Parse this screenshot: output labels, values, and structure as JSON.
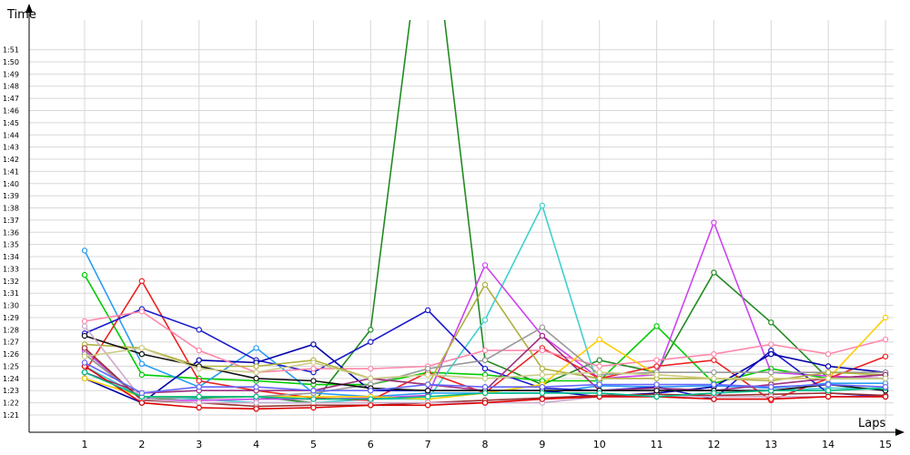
{
  "chart_data": {
    "type": "line",
    "xlabel": "Laps",
    "ylabel": "Time",
    "x": [
      1,
      2,
      3,
      4,
      5,
      6,
      7,
      8,
      9,
      10,
      11,
      12,
      13,
      14,
      15
    ],
    "y_ticks": [
      "1:21",
      "1:22",
      "1:23",
      "1:24",
      "1:25",
      "1:26",
      "1:27",
      "1:28",
      "1:29",
      "1:30",
      "1:31",
      "1:32",
      "1:33",
      "1:34",
      "1:35",
      "1:36",
      "1:37",
      "1:38",
      "1:39",
      "1:40",
      "1:41",
      "1:42",
      "1:43",
      "1:44",
      "1:45",
      "1:46",
      "1:47",
      "1:48",
      "1:49",
      "1:50",
      "1:51"
    ],
    "ylim_seconds": [
      80.3,
      113
    ],
    "grid": true,
    "series": [
      {
        "color": "#228b22",
        "values": [
          86.0,
          82.3,
          82.4,
          82.5,
          82.0,
          88.0,
          125.0,
          85.5,
          83.5,
          85.5,
          84.5,
          92.7,
          88.6,
          84.0,
          84.3
        ]
      },
      {
        "color": "#00cc00",
        "values": [
          92.5,
          84.3,
          84.0,
          83.8,
          83.5,
          83.5,
          84.5,
          84.3,
          83.8,
          83.8,
          88.3,
          83.6,
          84.8,
          84.0,
          84.0
        ]
      },
      {
        "color": "#2a9df4",
        "values": [
          94.5,
          85.2,
          83.3,
          86.5,
          82.8,
          82.5,
          82.8,
          82.8,
          82.8,
          83.4,
          83.3,
          83.4,
          83.2,
          83.6,
          83.6
        ]
      },
      {
        "color": "#40d0d0",
        "values": [
          85.0,
          82.5,
          82.3,
          82.0,
          82.0,
          82.3,
          82.3,
          88.8,
          98.2,
          83.0,
          83.2,
          83.0,
          83.0,
          83.2,
          83.2
        ]
      },
      {
        "color": "#cc44ee",
        "values": [
          86.3,
          82.2,
          82.2,
          82.3,
          82.3,
          82.4,
          82.6,
          93.3,
          87.5,
          84.0,
          84.3,
          96.8,
          84.5,
          84.2,
          84.0
        ]
      },
      {
        "color": "#ee2222",
        "values": [
          84.5,
          92.0,
          83.8,
          83.0,
          82.4,
          82.2,
          84.5,
          82.8,
          86.5,
          84.0,
          85.0,
          85.5,
          82.2,
          84.0,
          85.8
        ]
      },
      {
        "color": "#1a1acc",
        "values": [
          87.7,
          89.7,
          88.0,
          85.5,
          84.5,
          87.0,
          89.6,
          84.8,
          83.2,
          83.0,
          83.3,
          82.3,
          86.3,
          82.8,
          82.5
        ]
      },
      {
        "color": "#0000aa",
        "values": [
          84.0,
          82.0,
          85.5,
          85.3,
          86.8,
          83.0,
          83.0,
          83.0,
          83.0,
          82.5,
          82.8,
          83.3,
          86.0,
          85.0,
          84.5
        ]
      },
      {
        "color": "#ff88aa",
        "values": [
          88.7,
          89.5,
          86.3,
          84.5,
          84.8,
          84.8,
          85.0,
          86.3,
          86.3,
          85.0,
          85.5,
          86.0,
          86.8,
          86.0,
          87.2
        ]
      },
      {
        "color": "#ffcc00",
        "values": [
          84.0,
          82.5,
          82.5,
          82.5,
          82.5,
          82.5,
          82.3,
          82.8,
          83.5,
          87.2,
          84.3,
          84.0,
          84.0,
          84.0,
          89.0
        ]
      },
      {
        "color": "#999999",
        "values": [
          86.0,
          82.3,
          82.5,
          82.5,
          82.8,
          83.5,
          84.8,
          85.5,
          88.2,
          84.3,
          84.5,
          84.5,
          84.5,
          84.5,
          84.5
        ]
      },
      {
        "color": "#b0b040",
        "values": [
          86.8,
          86.5,
          85.0,
          85.0,
          85.5,
          84.0,
          83.5,
          91.7,
          84.8,
          84.0,
          84.0,
          84.0,
          83.8,
          84.5,
          84.3
        ]
      },
      {
        "color": "#a03080",
        "values": [
          84.5,
          82.8,
          83.0,
          83.0,
          83.0,
          84.0,
          83.5,
          83.0,
          87.5,
          83.0,
          83.2,
          83.0,
          83.5,
          84.0,
          84.3
        ]
      },
      {
        "color": "#993333",
        "values": [
          86.5,
          82.2,
          82.0,
          81.7,
          81.8,
          81.8,
          82.0,
          82.2,
          82.4,
          82.6,
          82.7,
          82.6,
          82.7,
          82.8,
          82.6
        ]
      },
      {
        "color": "#111111",
        "values": [
          87.5,
          86.0,
          85.0,
          84.0,
          83.8,
          83.2,
          83.0,
          83.0,
          83.0,
          83.0,
          83.0,
          83.0,
          83.0,
          83.5,
          83.0
        ]
      },
      {
        "color": "#ccaacc",
        "values": [
          88.3,
          82.3,
          82.0,
          82.0,
          82.0,
          82.0,
          82.0,
          82.0,
          82.0,
          82.5,
          82.5,
          82.5,
          82.5,
          82.5,
          82.5
        ]
      },
      {
        "color": "#dd0000",
        "values": [
          85.0,
          82.0,
          81.6,
          81.5,
          81.6,
          81.8,
          81.8,
          82.0,
          82.3,
          82.5,
          82.5,
          82.3,
          82.3,
          82.5,
          82.5
        ]
      },
      {
        "color": "#00bb88",
        "values": [
          84.5,
          82.5,
          82.5,
          82.5,
          82.3,
          82.3,
          82.5,
          82.8,
          82.8,
          82.8,
          82.5,
          82.8,
          83.0,
          83.0,
          83.2
        ]
      },
      {
        "color": "#6666ff",
        "values": [
          85.3,
          82.8,
          83.3,
          83.3,
          83.0,
          83.0,
          83.5,
          83.3,
          83.3,
          83.5,
          83.5,
          83.5,
          83.3,
          83.5,
          83.3
        ]
      },
      {
        "color": "#cccc88",
        "values": [
          85.8,
          86.5,
          84.8,
          84.5,
          85.3,
          84.0,
          84.3,
          84.0,
          84.3,
          84.5,
          84.3,
          84.0,
          84.0,
          84.0,
          84.0
        ]
      }
    ]
  }
}
